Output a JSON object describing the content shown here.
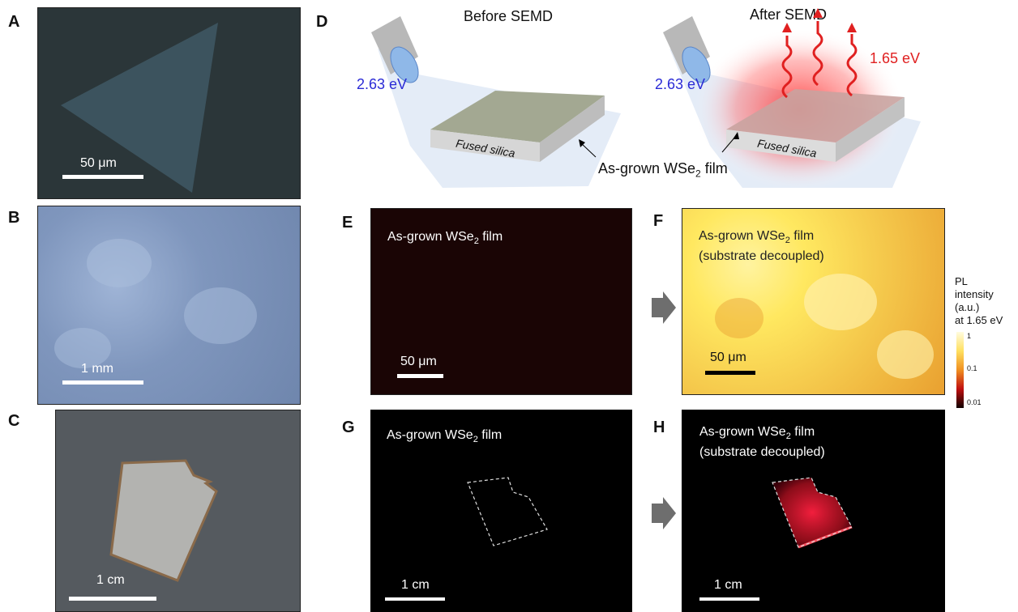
{
  "panels": {
    "A": {
      "letter": "A",
      "scale": "50 μm"
    },
    "B": {
      "letter": "B",
      "scale": "1 mm"
    },
    "C": {
      "letter": "C",
      "scale": "1 cm"
    },
    "D": {
      "letter": "D",
      "before": "Before SEMD",
      "after": "After SEMD",
      "energy_in": "2.63 eV",
      "energy_out": "1.65 eV",
      "substrate": "Fused silica",
      "film_pre": "As-grown WSe",
      "film_sub": "2",
      "film_post": " film"
    },
    "E": {
      "letter": "E",
      "title_pre": "As-grown WSe",
      "title_sub": "2",
      "title_post": " film",
      "scale": "50 μm"
    },
    "F": {
      "letter": "F",
      "title_pre": "As-grown WSe",
      "title_sub": "2",
      "title_post": " film",
      "title_line2": "(substrate decoupled)",
      "scale": "50 μm"
    },
    "G": {
      "letter": "G",
      "title_pre": "As-grown WSe",
      "title_sub": "2",
      "title_post": " film",
      "scale": "1 cm"
    },
    "H": {
      "letter": "H",
      "title_pre": "As-grown WSe",
      "title_sub": "2",
      "title_post": " film",
      "title_line2": "(substrate decoupled)",
      "scale": "1 cm"
    }
  },
  "colorbar": {
    "title_lines": [
      "PL",
      "intensity",
      "(a.u.)",
      "at 1.65 eV"
    ],
    "ticks": [
      "1",
      "0.1",
      "0.01"
    ]
  },
  "colors": {
    "laser_blue": "#2b2bd6",
    "emission_red": "#e02020",
    "arrow_gray": "#6e6e6e"
  }
}
